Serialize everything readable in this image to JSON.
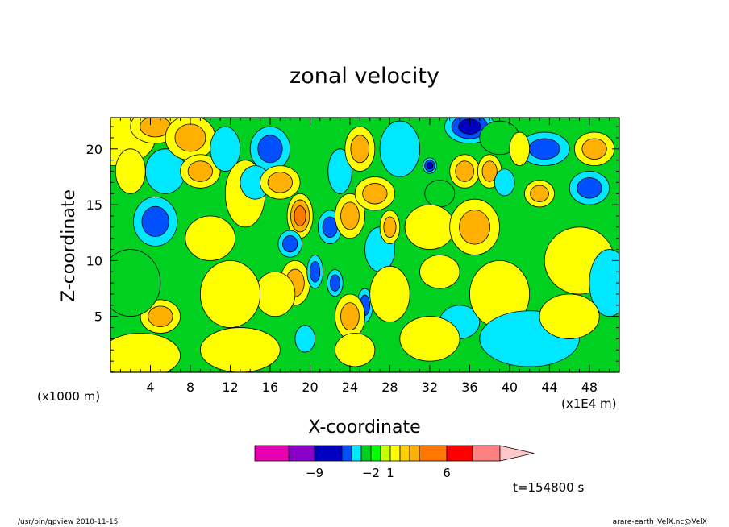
{
  "chart_data": {
    "type": "heatmap",
    "title": "zonal velocity",
    "xlabel": "X-coordinate",
    "ylabel": "Z-coordinate",
    "x_unit_left": "(x1000 m)",
    "x_unit_right": "(x1E4 m)",
    "x_ticks": [
      4,
      8,
      12,
      16,
      20,
      24,
      28,
      32,
      36,
      40,
      44,
      48
    ],
    "y_ticks": [
      5,
      10,
      15,
      20
    ],
    "xlim": [
      0,
      51
    ],
    "ylim": [
      0,
      22.8
    ],
    "time_label": "t=154800 s",
    "colorbar": {
      "tick_labels": [
        {
          "label": "−9",
          "value": -9
        },
        {
          "label": "−2",
          "value": -2
        },
        {
          "label": "1",
          "value": 1
        },
        {
          "label": "6",
          "value": 6
        }
      ],
      "colors": [
        "#e800b0",
        "#8a00c8",
        "#0000c0",
        "#0050ff",
        "#00e8ff",
        "#00d020",
        "#00ff00",
        "#c8ff00",
        "#ffff00",
        "#ffd000",
        "#ffb000",
        "#ff7800",
        "#ff0000",
        "#ff8080",
        "#ffc8c8"
      ]
    },
    "color_levels": [
      {
        "level": "-9",
        "color": "#8a00c8"
      },
      {
        "level": "-6",
        "color": "#0000c0"
      },
      {
        "level": "-4",
        "color": "#0050ff"
      },
      {
        "level": "-2",
        "color": "#00e8ff"
      },
      {
        "level": "0",
        "color": "#00d020"
      },
      {
        "level": "1",
        "color": "#ffff00"
      },
      {
        "level": "3",
        "color": "#ffb000"
      },
      {
        "level": "6",
        "color": "#ff7800"
      }
    ],
    "blobs": [
      {
        "x": 0.5,
        "z": 21,
        "rx": 4,
        "rz": 2.5,
        "v": 2.5
      },
      {
        "x": 4.5,
        "z": 22,
        "rx": 2.5,
        "rz": 1.5,
        "v": 4.5
      },
      {
        "x": 4.5,
        "z": 13.5,
        "rx": 2.2,
        "rz": 2.2,
        "v": -5.5
      },
      {
        "x": 5.5,
        "z": 18,
        "rx": 2,
        "rz": 2,
        "v": -3
      },
      {
        "x": 2,
        "z": 18,
        "rx": 1.5,
        "rz": 2,
        "v": 2
      },
      {
        "x": 5,
        "z": 5,
        "rx": 2,
        "rz": 1.5,
        "v": 3
      },
      {
        "x": 2,
        "z": 8,
        "rx": 3,
        "rz": 3,
        "v": 0.5
      },
      {
        "x": 8,
        "z": 21,
        "rx": 2.5,
        "rz": 2,
        "v": 3
      },
      {
        "x": 9,
        "z": 18,
        "rx": 2,
        "rz": 1.5,
        "v": 3.5
      },
      {
        "x": 11.5,
        "z": 20,
        "rx": 1.5,
        "rz": 2,
        "v": -2
      },
      {
        "x": 13.5,
        "z": 16,
        "rx": 2,
        "rz": 3,
        "v": 1.5
      },
      {
        "x": 16,
        "z": 20,
        "rx": 2,
        "rz": 2,
        "v": -5
      },
      {
        "x": 14.5,
        "z": 17,
        "rx": 1.5,
        "rz": 1.5,
        "v": -3
      },
      {
        "x": 17,
        "z": 17,
        "rx": 2,
        "rz": 1.5,
        "v": 4.5
      },
      {
        "x": 19,
        "z": 14,
        "rx": 1.3,
        "rz": 2,
        "v": 6
      },
      {
        "x": 18,
        "z": 11.5,
        "rx": 1.2,
        "rz": 1.2,
        "v": -5.5
      },
      {
        "x": 18.5,
        "z": 8,
        "rx": 1.5,
        "rz": 2,
        "v": 4
      },
      {
        "x": 16.5,
        "z": 7,
        "rx": 2,
        "rz": 2,
        "v": 2.5
      },
      {
        "x": 20.5,
        "z": 9,
        "rx": 0.8,
        "rz": 1.5,
        "v": -5
      },
      {
        "x": 19.5,
        "z": 3,
        "rx": 1,
        "rz": 1.2,
        "v": -3
      },
      {
        "x": 22.5,
        "z": 8,
        "rx": 0.8,
        "rz": 1.2,
        "v": -5.5
      },
      {
        "x": 22,
        "z": 13,
        "rx": 1.2,
        "rz": 1.5,
        "v": -5
      },
      {
        "x": 24,
        "z": 14,
        "rx": 1.5,
        "rz": 2,
        "v": 4.5
      },
      {
        "x": 23,
        "z": 18,
        "rx": 1.2,
        "rz": 2,
        "v": -3.5
      },
      {
        "x": 25,
        "z": 20,
        "rx": 1.5,
        "rz": 2,
        "v": 4
      },
      {
        "x": 26.5,
        "z": 16,
        "rx": 2,
        "rz": 1.5,
        "v": 4
      },
      {
        "x": 25.5,
        "z": 6,
        "rx": 0.8,
        "rz": 1.5,
        "v": -5
      },
      {
        "x": 24,
        "z": 5,
        "rx": 1.5,
        "rz": 2,
        "v": 3
      },
      {
        "x": 24.5,
        "z": 2,
        "rx": 2,
        "rz": 1.5,
        "v": 1.5
      },
      {
        "x": 27,
        "z": 11,
        "rx": 1.5,
        "rz": 2,
        "v": -0.5
      },
      {
        "x": 28,
        "z": 7,
        "rx": 2,
        "rz": 2.5,
        "v": 2
      },
      {
        "x": 28,
        "z": 13,
        "rx": 1,
        "rz": 1.5,
        "v": 4
      },
      {
        "x": 29,
        "z": 20,
        "rx": 2,
        "rz": 2.5,
        "v": -0.5
      },
      {
        "x": 32,
        "z": 18.5,
        "rx": 0.7,
        "rz": 0.7,
        "v": -6
      },
      {
        "x": 33,
        "z": 16,
        "rx": 1.5,
        "rz": 1.2,
        "v": 0
      },
      {
        "x": 32,
        "z": 13,
        "rx": 2.5,
        "rz": 2,
        "v": 2.5
      },
      {
        "x": 36.5,
        "z": 13,
        "rx": 2.5,
        "rz": 2.5,
        "v": 4
      },
      {
        "x": 33,
        "z": 9,
        "rx": 2,
        "rz": 1.5,
        "v": 1.5
      },
      {
        "x": 36,
        "z": 22,
        "rx": 2.5,
        "rz": 1.5,
        "v": -6
      },
      {
        "x": 35.5,
        "z": 18,
        "rx": 1.5,
        "rz": 1.5,
        "v": 4
      },
      {
        "x": 38,
        "z": 18,
        "rx": 1.2,
        "rz": 1.5,
        "v": 4
      },
      {
        "x": 39.5,
        "z": 17,
        "rx": 1,
        "rz": 1.2,
        "v": -3.5
      },
      {
        "x": 39,
        "z": 21,
        "rx": 2,
        "rz": 1.5,
        "v": 0.5
      },
      {
        "x": 35,
        "z": 4.5,
        "rx": 2,
        "rz": 1.5,
        "v": -2.5
      },
      {
        "x": 32,
        "z": 3,
        "rx": 3,
        "rz": 2,
        "v": 1
      },
      {
        "x": 39,
        "z": 7,
        "rx": 3,
        "rz": 3,
        "v": 1.5
      },
      {
        "x": 42,
        "z": 3,
        "rx": 5,
        "rz": 2.5,
        "v": -0.5
      },
      {
        "x": 43.5,
        "z": 20,
        "rx": 2.5,
        "rz": 1.5,
        "v": -5
      },
      {
        "x": 43,
        "z": 16,
        "rx": 1.5,
        "rz": 1.2,
        "v": 3
      },
      {
        "x": 48,
        "z": 16.5,
        "rx": 2,
        "rz": 1.5,
        "v": -5
      },
      {
        "x": 48.5,
        "z": 20,
        "rx": 2,
        "rz": 1.5,
        "v": 3
      },
      {
        "x": 41,
        "z": 20,
        "rx": 1,
        "rz": 1.5,
        "v": 2
      },
      {
        "x": 47,
        "z": 10,
        "rx": 3.5,
        "rz": 3,
        "v": 1.5
      },
      {
        "x": 50,
        "z": 8,
        "rx": 2,
        "rz": 3,
        "v": -0.5
      },
      {
        "x": 46,
        "z": 5,
        "rx": 3,
        "rz": 2,
        "v": 1.5
      },
      {
        "x": 12,
        "z": 7,
        "rx": 3,
        "rz": 3,
        "v": 1
      },
      {
        "x": 10,
        "z": 12,
        "rx": 2.5,
        "rz": 2,
        "v": 1.5
      },
      {
        "x": 13,
        "z": 2,
        "rx": 4,
        "rz": 2,
        "v": 1
      },
      {
        "x": 3,
        "z": 1.5,
        "rx": 4,
        "rz": 2,
        "v": 1
      }
    ]
  },
  "footer": {
    "left": "/usr/bin/gpview   2010-11-15",
    "right": "arare-earth_VelX.nc@VelX"
  }
}
